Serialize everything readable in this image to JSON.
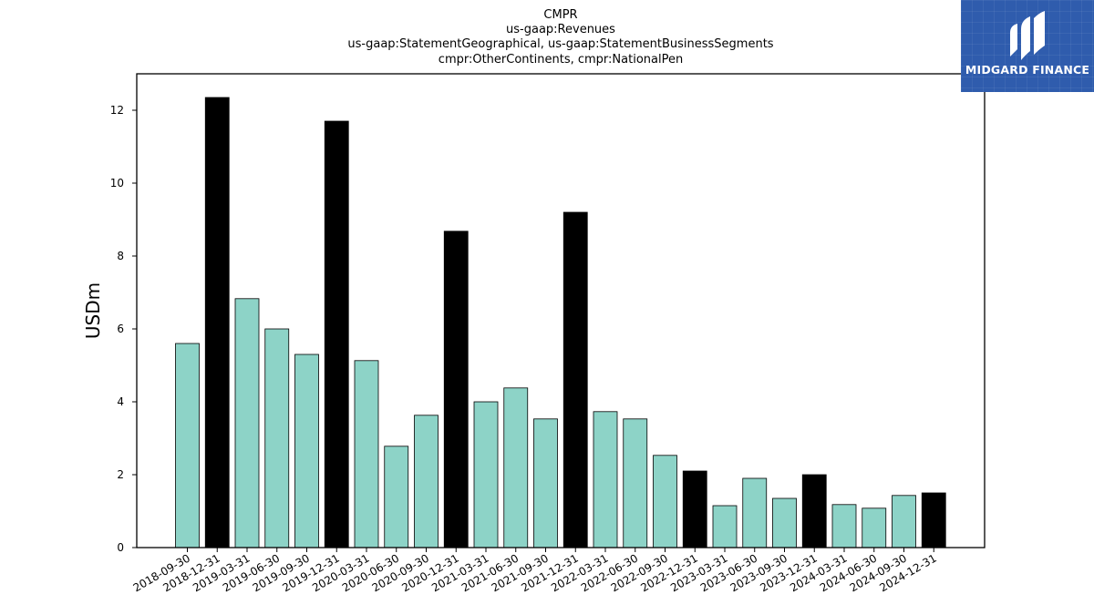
{
  "chart_data": {
    "type": "bar",
    "title_lines": [
      "CMPR",
      "us-gaap:Revenues",
      "us-gaap:StatementGeographical, us-gaap:StatementBusinessSegments",
      "cmpr:OtherContinents, cmpr:NationalPen"
    ],
    "xlabel": "",
    "ylabel": "USDm",
    "ylim": [
      0,
      13
    ],
    "yticks": [
      0,
      2,
      4,
      6,
      8,
      10,
      12
    ],
    "grid": false,
    "categories": [
      "2018-09-30",
      "2018-12-31",
      "2019-03-31",
      "2019-06-30",
      "2019-09-30",
      "2019-12-31",
      "2020-03-31",
      "2020-06-30",
      "2020-09-30",
      "2020-12-31",
      "2021-03-31",
      "2021-06-30",
      "2021-09-30",
      "2021-12-31",
      "2022-03-31",
      "2022-06-30",
      "2022-09-30",
      "2022-12-31",
      "2023-03-31",
      "2023-06-30",
      "2023-09-30",
      "2023-12-31",
      "2024-03-31",
      "2024-06-30",
      "2024-09-30",
      "2024-12-31"
    ],
    "values": [
      5.6,
      12.35,
      6.83,
      6.0,
      5.3,
      11.7,
      5.13,
      2.78,
      3.63,
      8.68,
      4.0,
      4.38,
      3.53,
      9.2,
      3.73,
      3.53,
      2.53,
      2.1,
      1.15,
      1.9,
      1.35,
      2.0,
      1.18,
      1.08,
      1.43,
      1.5
    ],
    "bar_colors": {
      "quarter": "#8dd3c7",
      "year_end": "#000000",
      "edge": "#000000"
    }
  },
  "logo": {
    "text": "MIDGARD FINANCE",
    "icon": "midgard-logo-icon"
  }
}
